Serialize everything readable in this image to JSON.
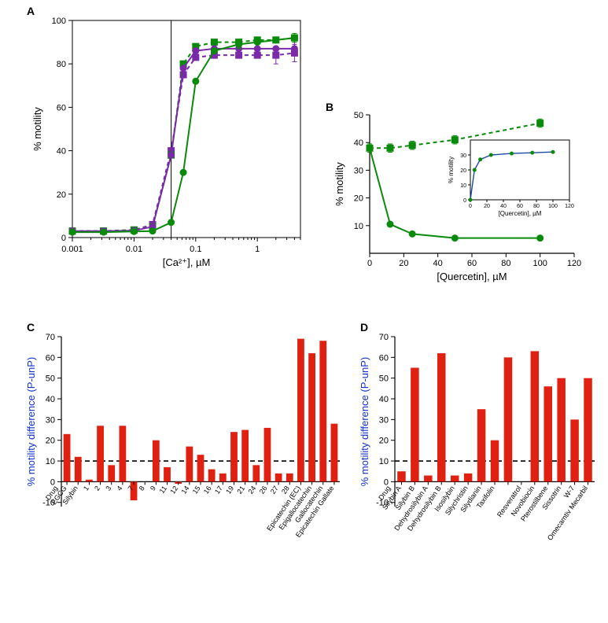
{
  "global": {
    "bg": "#ffffff",
    "axis_color": "#000000",
    "tick_fontsize": 11,
    "label_fontsize": 13,
    "panel_label_fontsize": 14,
    "threshold_dash": "6,4",
    "threshold_color": "#000000"
  },
  "panelA": {
    "label": "A",
    "x_label": "[Ca²⁺], µM",
    "y_label": "% motility",
    "xscale": "log",
    "xlim_log": [
      -3,
      0.699
    ],
    "ylim": [
      0,
      100
    ],
    "xticks": [
      0.001,
      0.01,
      0.1,
      1
    ],
    "xtick_labels": [
      "0.001",
      "0.01",
      "0.1",
      "1"
    ],
    "yticks": [
      0,
      20,
      40,
      60,
      80,
      100
    ],
    "green": "#0a8a0a",
    "purple": "#7a2aa8",
    "vline_x": 0.04,
    "line_width": 2,
    "marker_size": 4,
    "series": {
      "green_solid": {
        "color_key": "green",
        "dash": null,
        "marker": "circle",
        "points": [
          {
            "x": 0.001,
            "y": 2.5
          },
          {
            "x": 0.0032,
            "y": 2.5
          },
          {
            "x": 0.01,
            "y": 2.8
          },
          {
            "x": 0.02,
            "y": 3
          },
          {
            "x": 0.04,
            "y": 7
          },
          {
            "x": 0.063,
            "y": 30
          },
          {
            "x": 0.1,
            "y": 72
          },
          {
            "x": 0.2,
            "y": 86
          },
          {
            "x": 0.5,
            "y": 89,
            "err": 2
          },
          {
            "x": 1,
            "y": 90
          },
          {
            "x": 2,
            "y": 91
          },
          {
            "x": 4,
            "y": 92,
            "err": 2
          }
        ]
      },
      "green_dashed": {
        "color_key": "green",
        "dash": "5,4",
        "marker": "square",
        "points": [
          {
            "x": 0.001,
            "y": 3
          },
          {
            "x": 0.0032,
            "y": 3
          },
          {
            "x": 0.01,
            "y": 3.5
          },
          {
            "x": 0.02,
            "y": 5
          },
          {
            "x": 0.04,
            "y": 38
          },
          {
            "x": 0.063,
            "y": 80
          },
          {
            "x": 0.1,
            "y": 88
          },
          {
            "x": 0.2,
            "y": 90
          },
          {
            "x": 0.5,
            "y": 90
          },
          {
            "x": 1,
            "y": 91
          },
          {
            "x": 2,
            "y": 91
          },
          {
            "x": 4,
            "y": 92
          }
        ]
      },
      "purple_solid": {
        "color_key": "purple",
        "dash": null,
        "marker": "circle",
        "points": [
          {
            "x": 0.001,
            "y": 3
          },
          {
            "x": 0.0032,
            "y": 3
          },
          {
            "x": 0.01,
            "y": 3.2
          },
          {
            "x": 0.02,
            "y": 5
          },
          {
            "x": 0.04,
            "y": 38
          },
          {
            "x": 0.063,
            "y": 78
          },
          {
            "x": 0.1,
            "y": 86
          },
          {
            "x": 0.2,
            "y": 87
          },
          {
            "x": 0.5,
            "y": 87
          },
          {
            "x": 1,
            "y": 87,
            "err": 3
          },
          {
            "x": 2,
            "y": 87
          },
          {
            "x": 4,
            "y": 87,
            "err": 3
          }
        ]
      },
      "purple_dashed": {
        "color_key": "purple",
        "dash": "5,4",
        "marker": "square",
        "points": [
          {
            "x": 0.001,
            "y": 3
          },
          {
            "x": 0.0032,
            "y": 3
          },
          {
            "x": 0.01,
            "y": 3.5
          },
          {
            "x": 0.02,
            "y": 6
          },
          {
            "x": 0.04,
            "y": 40
          },
          {
            "x": 0.063,
            "y": 75
          },
          {
            "x": 0.1,
            "y": 83
          },
          {
            "x": 0.2,
            "y": 84
          },
          {
            "x": 0.5,
            "y": 84
          },
          {
            "x": 1,
            "y": 84
          },
          {
            "x": 2,
            "y": 84,
            "err": 4
          },
          {
            "x": 4,
            "y": 85,
            "err": 4
          }
        ]
      }
    }
  },
  "panelB": {
    "label": "B",
    "x_label": "[Quercetin], µM",
    "y_label": "% motility",
    "xlim": [
      0,
      120
    ],
    "ylim": [
      0,
      50
    ],
    "xticks": [
      0,
      20,
      40,
      60,
      80,
      100,
      120
    ],
    "yticks": [
      10,
      20,
      30,
      40,
      50
    ],
    "green": "#0a8a0a",
    "line_width": 2,
    "marker_size": 4,
    "series": {
      "dashed_sq": {
        "dash": "5,4",
        "marker": "square",
        "points": [
          {
            "x": 0,
            "y": 38,
            "err": 1.5
          },
          {
            "x": 12,
            "y": 38,
            "err": 1.5
          },
          {
            "x": 25,
            "y": 39,
            "err": 1.5
          },
          {
            "x": 50,
            "y": 41,
            "err": 1.5
          },
          {
            "x": 100,
            "y": 47,
            "err": 1.5
          }
        ]
      },
      "solid_circ": {
        "dash": null,
        "marker": "circle",
        "points": [
          {
            "x": 0,
            "y": 38
          },
          {
            "x": 12,
            "y": 10.5
          },
          {
            "x": 25,
            "y": 7
          },
          {
            "x": 50,
            "y": 5.5
          },
          {
            "x": 100,
            "y": 5.5
          }
        ]
      }
    },
    "inset": {
      "x_label": "[Quercetin], µM",
      "y_label": "% motility",
      "xlim": [
        0,
        120
      ],
      "ylim": [
        0,
        40
      ],
      "xticks": [
        0,
        20,
        40,
        60,
        80,
        100,
        120
      ],
      "yticks": [
        0,
        10,
        20,
        30
      ],
      "color": "#1a4aa8",
      "marker_color": "#0a8a0a",
      "points": [
        {
          "x": 0,
          "y": 0
        },
        {
          "x": 5,
          "y": 20
        },
        {
          "x": 12,
          "y": 27
        },
        {
          "x": 25,
          "y": 30
        },
        {
          "x": 50,
          "y": 31
        },
        {
          "x": 75,
          "y": 31.5
        },
        {
          "x": 100,
          "y": 32
        }
      ]
    }
  },
  "panelC": {
    "label": "C",
    "y_label": "% motility difference (P-unP)",
    "y_label_color": "#1030d0",
    "x_header": "Drug",
    "ylim": [
      -12,
      70
    ],
    "yticks": [
      -10,
      0,
      10,
      20,
      30,
      40,
      50,
      60,
      70
    ],
    "threshold": 10,
    "bar_color": "#e02010",
    "bar_width": 0.62,
    "tick_fontsize": 9,
    "bars": [
      {
        "label": "EGCG",
        "value": 23
      },
      {
        "label": "Silybin",
        "value": 12
      },
      {
        "label": "1",
        "value": 1
      },
      {
        "label": "2",
        "value": 27
      },
      {
        "label": "3",
        "value": 8
      },
      {
        "label": "4",
        "value": 27
      },
      {
        "label": "7",
        "value": -9
      },
      {
        "label": "8",
        "value": 0
      },
      {
        "label": "9",
        "value": 20
      },
      {
        "label": "11",
        "value": 7
      },
      {
        "label": "12",
        "value": -1
      },
      {
        "label": "14",
        "value": 17
      },
      {
        "label": "15",
        "value": 13
      },
      {
        "label": "16",
        "value": 6
      },
      {
        "label": "17",
        "value": 4
      },
      {
        "label": "19",
        "value": 24
      },
      {
        "label": "21",
        "value": 25
      },
      {
        "label": "24",
        "value": 8
      },
      {
        "label": "26",
        "value": 26
      },
      {
        "label": "27",
        "value": 4
      },
      {
        "label": "28",
        "value": 4
      },
      {
        "label": "Epicatechin (EC)",
        "value": 69
      },
      {
        "label": "Epigallocatechin",
        "value": 62
      },
      {
        "label": "Gallocatechin",
        "value": 68
      },
      {
        "label": "Epicatechin Gallate",
        "value": 28
      }
    ]
  },
  "panelD": {
    "label": "D",
    "y_label": "% motility difference (P-unP)",
    "y_label_color": "#1030d0",
    "x_header": "Drug",
    "ylim": [
      -12,
      70
    ],
    "yticks": [
      -10,
      0,
      10,
      20,
      30,
      40,
      50,
      60,
      70
    ],
    "threshold": 10,
    "bar_color": "#e02010",
    "bar_width": 0.62,
    "tick_fontsize": 9,
    "bars": [
      {
        "label": "Silybin A",
        "value": 5
      },
      {
        "label": "Silybin B",
        "value": 55
      },
      {
        "label": "Dehydrosilybin A",
        "value": 3
      },
      {
        "label": "Dehydrosilybin B",
        "value": 62
      },
      {
        "label": "Isosilybin",
        "value": 3
      },
      {
        "label": "Silychristin",
        "value": 4
      },
      {
        "label": "Silydianin",
        "value": 35
      },
      {
        "label": "Taxifolin",
        "value": 20
      },
      {
        "label": "",
        "value": 60
      },
      {
        "label": "Resveratrol",
        "value": null
      },
      {
        "label": "Novobiocin",
        "value": 63
      },
      {
        "label": "Pterostilbene",
        "value": 46
      },
      {
        "label": "Sissotrin",
        "value": 50
      },
      {
        "label": "W-7",
        "value": 30
      },
      {
        "label": "Omecamtiv Mecarbil",
        "value": 50
      }
    ]
  }
}
